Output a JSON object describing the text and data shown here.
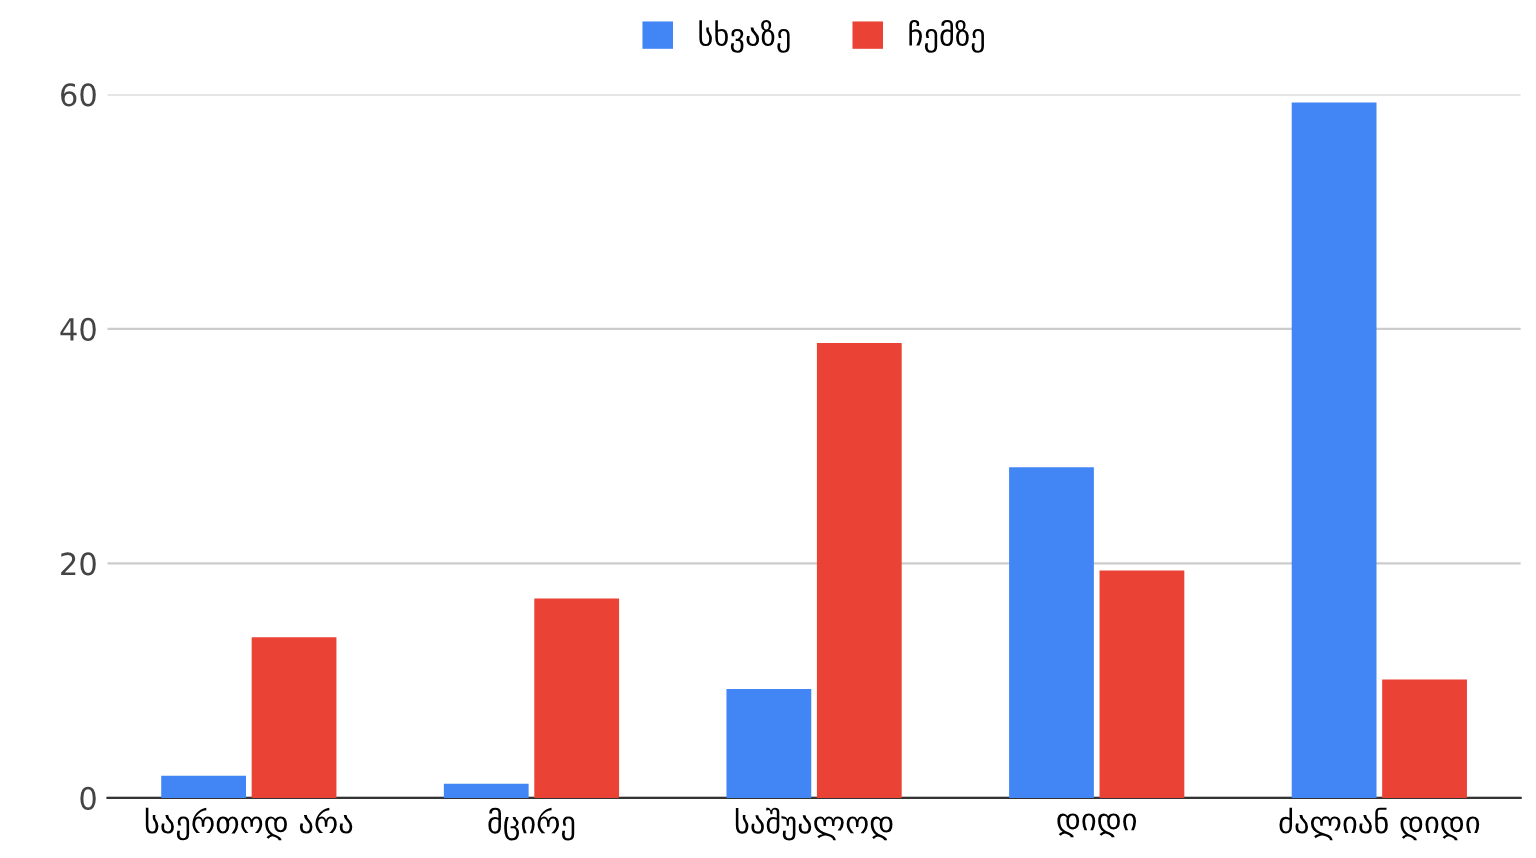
{
  "chart_data": {
    "type": "bar",
    "categories": [
      "საერთოდ არა",
      "მცირე",
      "საშუალოდ",
      "დიდი",
      "ძალიან დიდი"
    ],
    "series": [
      {
        "name": "სხვაზე",
        "color": "#4285f4",
        "values": [
          1.9,
          1.2,
          9.3,
          28.2,
          59.3
        ]
      },
      {
        "name": "ჩემზე",
        "color": "#ea4335",
        "values": [
          13.7,
          17.0,
          38.8,
          19.4,
          10.1
        ]
      }
    ],
    "ylim": [
      0,
      60
    ],
    "yticks": [
      0,
      20,
      40,
      60
    ],
    "grid": "y",
    "legend": "top"
  }
}
